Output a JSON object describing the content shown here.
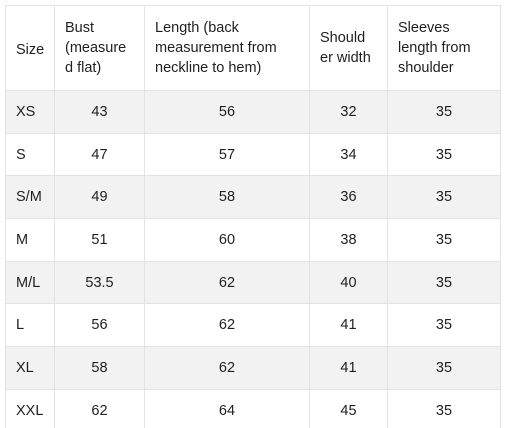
{
  "table": {
    "headers": [
      "Size",
      "Bust (measure\nd flat)",
      "Length (back measurement from neckline to hem)",
      "Should\ner width",
      "Sleeves length from shoulder"
    ],
    "rows": [
      [
        "XS",
        "43",
        "56",
        "32",
        "35"
      ],
      [
        "S",
        "47",
        "57",
        "34",
        "35"
      ],
      [
        "S/M",
        "49",
        "58",
        "36",
        "35"
      ],
      [
        "M",
        "51",
        "60",
        "38",
        "35"
      ],
      [
        "M/L",
        "53.5",
        "62",
        "40",
        "35"
      ],
      [
        "L",
        "56",
        "62",
        "41",
        "35"
      ],
      [
        "XL",
        "58",
        "62",
        "41",
        "35"
      ],
      [
        "XXL",
        "62",
        "64",
        "45",
        "35"
      ]
    ]
  },
  "colors": {
    "stripe": "#f2f2f2",
    "border": "#e3e3e3",
    "text": "#1f1f1f"
  }
}
